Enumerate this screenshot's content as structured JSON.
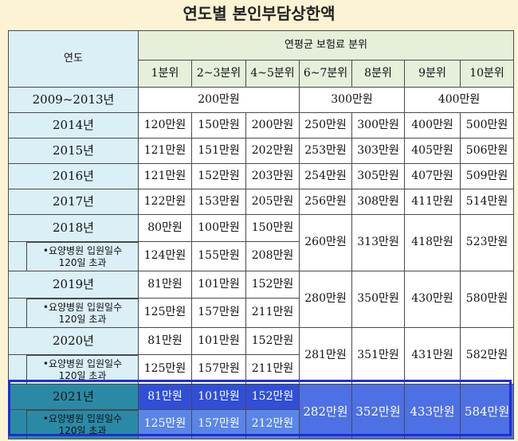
{
  "title": "연도별 본인부담상한액",
  "header": {
    "year_label": "연도",
    "group_label": "연평균 보험료 분위",
    "deciles": [
      "1분위",
      "2~3분위",
      "4~5분위",
      "6~7분위",
      "8분위",
      "9분위",
      "10분위"
    ]
  },
  "rows": {
    "r2009": {
      "year": "2009~2013년",
      "g1": "200만원",
      "g2": "300만원",
      "g3": "400만원"
    },
    "r2014": {
      "year": "2014년",
      "v": [
        "120만원",
        "150만원",
        "200만원",
        "250만원",
        "300만원",
        "400만원",
        "500만원"
      ]
    },
    "r2015": {
      "year": "2015년",
      "v": [
        "121만원",
        "151만원",
        "202만원",
        "253만원",
        "303만원",
        "405만원",
        "506만원"
      ]
    },
    "r2016": {
      "year": "2016년",
      "v": [
        "121만원",
        "152만원",
        "203만원",
        "254만원",
        "305만원",
        "407만원",
        "509만원"
      ]
    },
    "r2017": {
      "year": "2017년",
      "v": [
        "122만원",
        "153만원",
        "205만원",
        "256만원",
        "308만원",
        "411만원",
        "514만원"
      ]
    },
    "r2018": {
      "year": "2018년",
      "a": [
        "80만원",
        "100만원",
        "150만원"
      ],
      "b": [
        "124만원",
        "155만원",
        "208만원"
      ],
      "m": [
        "260만원",
        "313만원",
        "418만원",
        "523만원"
      ]
    },
    "r2019": {
      "year": "2019년",
      "a": [
        "81만원",
        "101만원",
        "152만원"
      ],
      "b": [
        "125만원",
        "157만원",
        "211만원"
      ],
      "m": [
        "280만원",
        "350만원",
        "430만원",
        "580만원"
      ]
    },
    "r2020": {
      "year": "2020년",
      "a": [
        "81만원",
        "101만원",
        "152만원"
      ],
      "b": [
        "125만원",
        "157만원",
        "211만원"
      ],
      "m": [
        "281만원",
        "351만원",
        "431만원",
        "582만원"
      ]
    },
    "r2021": {
      "year": "2021년",
      "a": [
        "81만원",
        "101만원",
        "152만원"
      ],
      "b": [
        "125만원",
        "157만원",
        "212만원"
      ],
      "m": [
        "282만원",
        "352만원",
        "433만원",
        "584만원"
      ]
    }
  },
  "sub_label": {
    "line1": "•요양병원 입원일수",
    "line2": "120일 초과"
  },
  "colors": {
    "year_bg": "#dbeff7",
    "header_bg": "#e6efda",
    "highlight": "#2f4fd9",
    "background": "#fbf3d3"
  }
}
